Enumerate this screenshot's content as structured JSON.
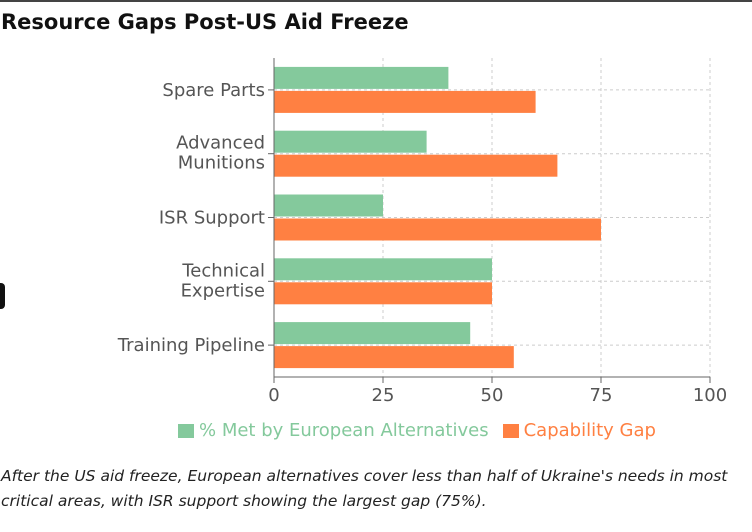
{
  "chart_data": {
    "type": "bar",
    "orientation": "horizontal",
    "title": "Resource Gaps Post-US Aid Freeze",
    "categories": [
      [
        "Spare Parts"
      ],
      [
        "Advanced",
        "Munitions"
      ],
      [
        "ISR Support"
      ],
      [
        "Technical",
        "Expertise"
      ],
      [
        "Training Pipeline"
      ]
    ],
    "series": [
      {
        "name": "% Met by European Alternatives",
        "color": "#84c99c",
        "values": [
          40,
          35,
          25,
          50,
          45
        ]
      },
      {
        "name": "Capability Gap",
        "color": "#ff8042",
        "values": [
          60,
          65,
          75,
          50,
          55
        ]
      }
    ],
    "xlim": [
      0,
      100
    ],
    "xticks": [
      "0",
      "25",
      "50",
      "75",
      "100"
    ],
    "grid": true,
    "legend_position": "bottom"
  },
  "caption": "After the US aid freeze, European alternatives cover less than half of Ukraine's needs in most critical areas, with ISR support showing the largest gap (75%)."
}
